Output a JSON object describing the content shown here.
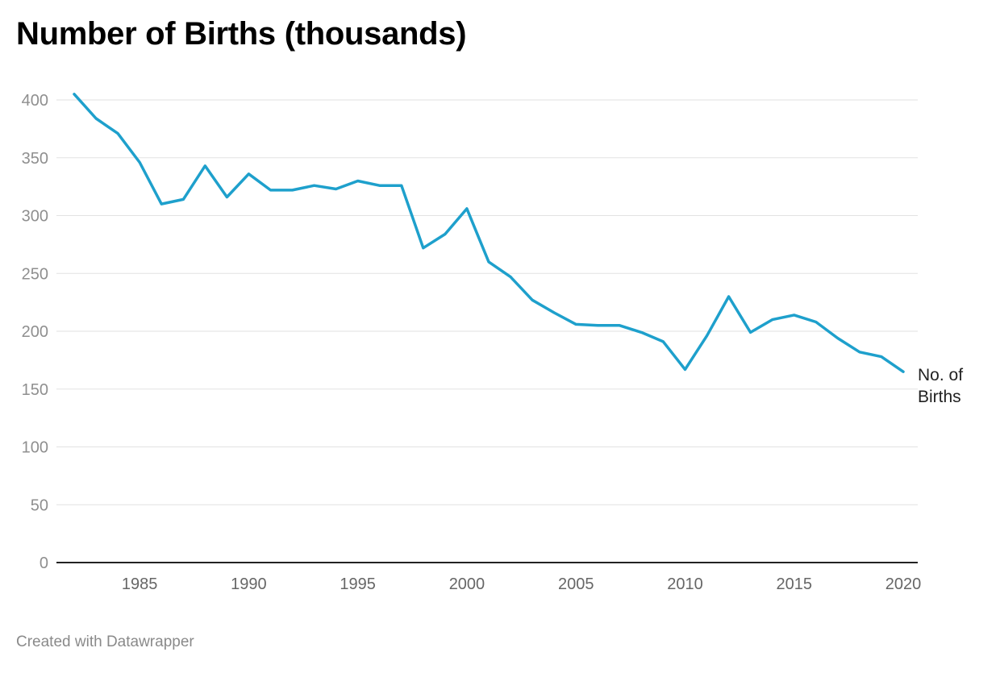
{
  "title": "Number of Births (thousands)",
  "credit": "Created with Datawrapper",
  "colors": {
    "line": "#1ea0cc",
    "grid": "#e2e2e2",
    "axis": "#222222",
    "tick_text": "#8f8f8f"
  },
  "chart_data": {
    "type": "line",
    "title": "Number of Births (thousands)",
    "xlabel": "",
    "ylabel": "",
    "xlim": [
      1982,
      2020
    ],
    "ylim": [
      0,
      400
    ],
    "x_ticks": [
      1985,
      1990,
      1995,
      2000,
      2005,
      2010,
      2015,
      2020
    ],
    "y_ticks": [
      0,
      50,
      100,
      150,
      200,
      250,
      300,
      350,
      400
    ],
    "grid": true,
    "series": [
      {
        "name": "No. of Births",
        "x": [
          1982,
          1983,
          1984,
          1985,
          1986,
          1987,
          1988,
          1989,
          1990,
          1991,
          1992,
          1993,
          1994,
          1995,
          1996,
          1997,
          1998,
          1999,
          2000,
          2001,
          2002,
          2003,
          2004,
          2005,
          2006,
          2007,
          2008,
          2009,
          2010,
          2011,
          2012,
          2013,
          2014,
          2015,
          2016,
          2017,
          2018,
          2019,
          2020
        ],
        "values": [
          405,
          384,
          371,
          346,
          310,
          314,
          343,
          316,
          336,
          322,
          322,
          326,
          323,
          330,
          326,
          326,
          272,
          284,
          306,
          260,
          247,
          227,
          216,
          206,
          205,
          205,
          199,
          191,
          167,
          196,
          230,
          199,
          210,
          214,
          208,
          194,
          182,
          178,
          165
        ]
      }
    ]
  }
}
